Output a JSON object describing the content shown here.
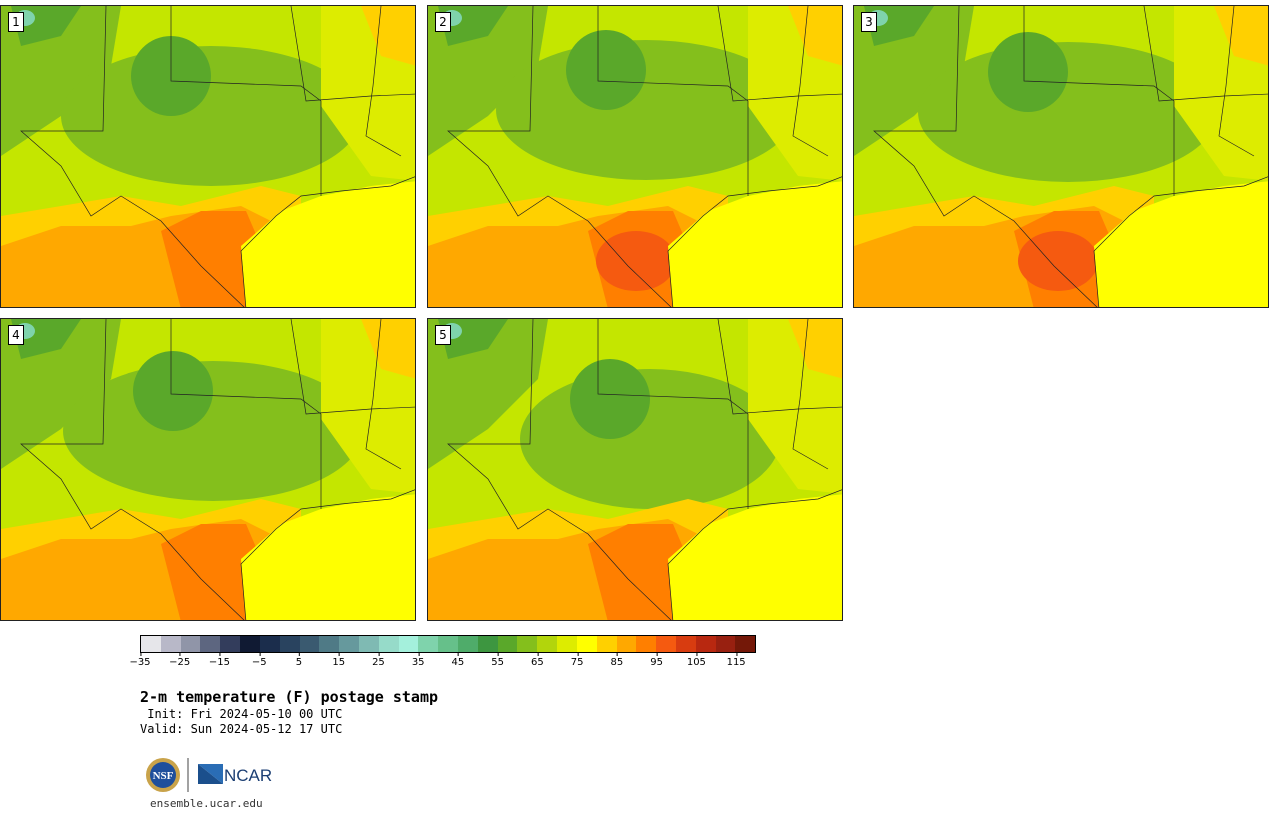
{
  "panels": [
    {
      "label": "1",
      "variant": 0
    },
    {
      "label": "2",
      "variant": 1
    },
    {
      "label": "3",
      "variant": 2
    },
    {
      "label": "4",
      "variant": 3
    },
    {
      "label": "5",
      "variant": 4
    }
  ],
  "colorbar": {
    "colors": [
      "#e6e6ea",
      "#b8b8c8",
      "#9095a8",
      "#5d6680",
      "#333d5c",
      "#101a33",
      "#1b2d4c",
      "#29435f",
      "#3a5a70",
      "#4f7a86",
      "#66999d",
      "#7fbab3",
      "#96dbc9",
      "#a4f0dc",
      "#7fd3ac",
      "#66c08a",
      "#4fac6a",
      "#3d9640",
      "#5aa82a",
      "#84bf1c",
      "#b2d50c",
      "#ddec00",
      "#ffff00",
      "#ffd000",
      "#ffa800",
      "#ff7f00",
      "#f55a10",
      "#d83c10",
      "#b82810",
      "#982010",
      "#741808"
    ],
    "ticks": [
      "−35",
      "−25",
      "−15",
      "−5",
      "5",
      "15",
      "25",
      "35",
      "45",
      "55",
      "65",
      "75",
      "85",
      "95",
      "105",
      "115"
    ]
  },
  "title": "2-m temperature (F) postage stamp",
  "init": " Init: Fri 2024-05-10 00 UTC",
  "valid": "Valid: Sun 2024-05-12 17 UTC",
  "footer": "ensemble.ucar.edu",
  "logos": {
    "nsf": "NSF",
    "ncar": "NCAR"
  }
}
